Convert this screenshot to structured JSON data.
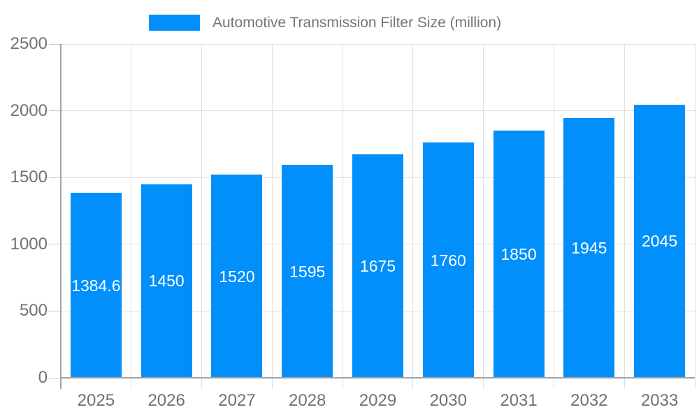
{
  "chart_data": {
    "type": "bar",
    "title": "Automotive Transmission Filter Size (million)",
    "categories": [
      "2025",
      "2026",
      "2027",
      "2028",
      "2029",
      "2030",
      "2031",
      "2032",
      "2033"
    ],
    "values": [
      1384.6,
      1450,
      1520,
      1595,
      1675,
      1760,
      1850,
      1945,
      2045
    ],
    "values_display": [
      "1384.6",
      "1450",
      "1520",
      "1595",
      "1675",
      "1760",
      "1850",
      "1945",
      "2045"
    ],
    "ylim": [
      0,
      2500
    ],
    "yticks": [
      0,
      500,
      1000,
      1500,
      2000,
      2500
    ],
    "xlabel": "",
    "ylabel": "",
    "grid": true,
    "legend_position": "top",
    "colors": {
      "bar": "#008FFB",
      "grid_line": "#e0e0e0",
      "axis_line": "#a2a2a7",
      "tick": "#c9c9c9",
      "axis_label_text": "#70707a",
      "legend_text": "#757575",
      "data_label_text": "#ffffff",
      "background": "#ffffff"
    }
  }
}
